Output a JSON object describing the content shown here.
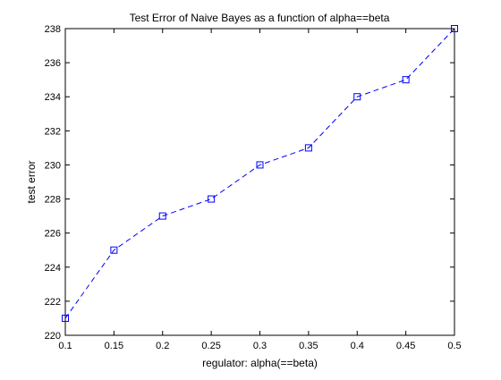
{
  "chart_data": {
    "type": "line",
    "title": "Test Error of Naive Bayes as a function of alpha==beta",
    "xlabel": "regulator: alpha(==beta)",
    "ylabel": "test error",
    "xlim": [
      0.1,
      0.5
    ],
    "ylim": [
      220,
      238
    ],
    "x_ticks": [
      "0.1",
      "0.15",
      "0.2",
      "0.25",
      "0.3",
      "0.35",
      "0.4",
      "0.45",
      "0.5"
    ],
    "y_ticks": [
      "220",
      "222",
      "224",
      "226",
      "228",
      "230",
      "232",
      "234",
      "236",
      "238"
    ],
    "grid": false,
    "series": [
      {
        "x": [
          0.1,
          0.15,
          0.2,
          0.25,
          0.3,
          0.35,
          0.4,
          0.45,
          0.5
        ],
        "y": [
          221,
          225,
          227,
          228,
          230,
          231,
          234,
          235,
          238
        ],
        "color": "#0000ff",
        "line_style": "dashed",
        "marker": "square"
      }
    ]
  }
}
